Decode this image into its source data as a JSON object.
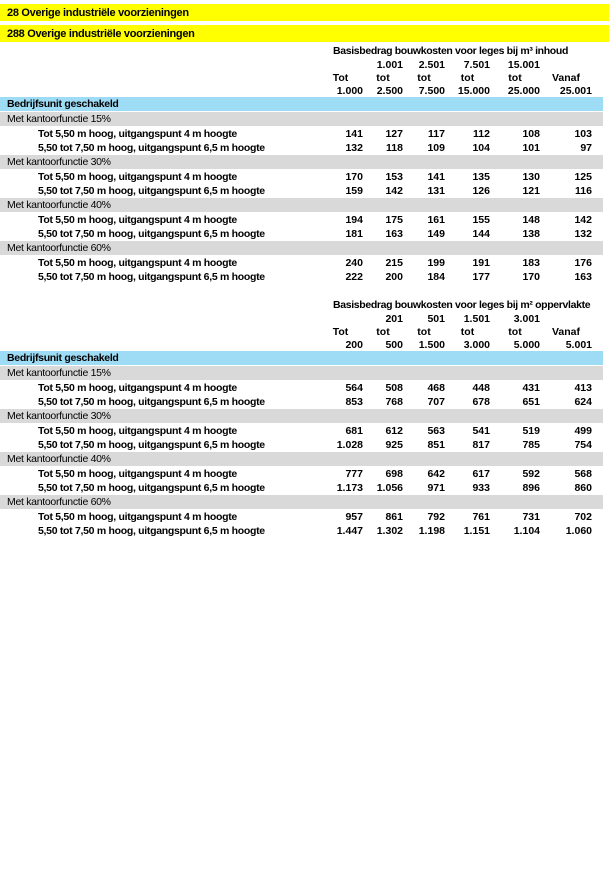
{
  "colors": {
    "highlight": "#FFFF00",
    "group_band": "#9EDCF5",
    "section_band": "#D9D9D9",
    "text": "#000000"
  },
  "category_rows": [
    {
      "text": "28 Overige industriële voorzieningen"
    },
    {
      "text": "288 Overige industriële voorzieningen"
    }
  ],
  "tables": [
    {
      "id": "m3-inhoud",
      "title": "Basisbedrag bouwkosten voor leges bij m³ inhoud",
      "range_lower": [
        "",
        "1.001",
        "2.501",
        "7.501",
        "15.001",
        ""
      ],
      "range_words": [
        "Tot",
        "tot",
        "tot",
        "tot",
        "tot",
        "Vanaf"
      ],
      "range_upper": [
        "1.000",
        "2.500",
        "7.500",
        "15.000",
        "25.000",
        "25.001"
      ],
      "group_label": "Bedrijfsunit geschakeld",
      "sections": [
        {
          "label": "Met kantoorfunctie 15%",
          "rows": [
            {
              "label": "Tot 5,50 m hoog, uitgangspunt 4 m hoogte",
              "values": [
                "141",
                "127",
                "117",
                "112",
                "108",
                "103"
              ]
            },
            {
              "label": "5,50 tot 7,50 m hoog, uitgangspunt 6,5 m hoogte",
              "values": [
                "132",
                "118",
                "109",
                "104",
                "101",
                "97"
              ]
            }
          ]
        },
        {
          "label": "Met kantoorfunctie 30%",
          "rows": [
            {
              "label": "Tot 5,50 m hoog, uitgangspunt 4 m hoogte",
              "values": [
                "170",
                "153",
                "141",
                "135",
                "130",
                "125"
              ]
            },
            {
              "label": "5,50 tot 7,50 m hoog, uitgangspunt 6,5 m hoogte",
              "values": [
                "159",
                "142",
                "131",
                "126",
                "121",
                "116"
              ]
            }
          ]
        },
        {
          "label": "Met kantoorfunctie 40%",
          "rows": [
            {
              "label": "Tot 5,50 m hoog, uitgangspunt 4 m hoogte",
              "values": [
                "194",
                "175",
                "161",
                "155",
                "148",
                "142"
              ]
            },
            {
              "label": "5,50 tot 7,50 m hoog, uitgangspunt 6,5 m hoogte",
              "values": [
                "181",
                "163",
                "149",
                "144",
                "138",
                "132"
              ]
            }
          ]
        },
        {
          "label": "Met kantoorfunctie 60%",
          "rows": [
            {
              "label": "Tot 5,50 m hoog, uitgangspunt 4 m hoogte",
              "values": [
                "240",
                "215",
                "199",
                "191",
                "183",
                "176"
              ]
            },
            {
              "label": "5,50 tot 7,50 m hoog, uitgangspunt 6,5 m hoogte",
              "values": [
                "222",
                "200",
                "184",
                "177",
                "170",
                "163"
              ]
            }
          ]
        }
      ]
    },
    {
      "id": "m2-oppervlakte",
      "title": "Basisbedrag bouwkosten voor leges bij m² oppervlakte",
      "range_lower": [
        "",
        "201",
        "501",
        "1.501",
        "3.001",
        ""
      ],
      "range_words": [
        "Tot",
        "tot",
        "tot",
        "tot",
        "tot",
        "Vanaf"
      ],
      "range_upper": [
        "200",
        "500",
        "1.500",
        "3.000",
        "5.000",
        "5.001"
      ],
      "group_label": "Bedrijfsunit geschakeld",
      "sections": [
        {
          "label": "Met kantoorfunctie 15%",
          "rows": [
            {
              "label": "Tot 5,50 m hoog, uitgangspunt 4 m hoogte",
              "values": [
                "564",
                "508",
                "468",
                "448",
                "431",
                "413"
              ]
            },
            {
              "label": "5,50 tot 7,50 m hoog, uitgangspunt 6,5 m hoogte",
              "values": [
                "853",
                "768",
                "707",
                "678",
                "651",
                "624"
              ]
            }
          ]
        },
        {
          "label": "Met kantoorfunctie 30%",
          "rows": [
            {
              "label": "Tot 5,50 m hoog, uitgangspunt 4 m hoogte",
              "values": [
                "681",
                "612",
                "563",
                "541",
                "519",
                "499"
              ]
            },
            {
              "label": "5,50 tot 7,50 m hoog, uitgangspunt 6,5 m hoogte",
              "values": [
                "1.028",
                "925",
                "851",
                "817",
                "785",
                "754"
              ]
            }
          ]
        },
        {
          "label": "Met kantoorfunctie 40%",
          "rows": [
            {
              "label": "Tot 5,50 m hoog, uitgangspunt 4 m hoogte",
              "values": [
                "777",
                "698",
                "642",
                "617",
                "592",
                "568"
              ]
            },
            {
              "label": "5,50 tot 7,50 m hoog, uitgangspunt 6,5 m hoogte",
              "values": [
                "1.173",
                "1.056",
                "971",
                "933",
                "896",
                "860"
              ]
            }
          ]
        },
        {
          "label": "Met kantoorfunctie 60%",
          "rows": [
            {
              "label": "Tot 5,50 m hoog, uitgangspunt 4 m hoogte",
              "values": [
                "957",
                "861",
                "792",
                "761",
                "731",
                "702"
              ]
            },
            {
              "label": "5,50 tot 7,50 m hoog, uitgangspunt 6,5 m hoogte",
              "values": [
                "1.447",
                "1.302",
                "1.198",
                "1.151",
                "1.104",
                "1.060"
              ]
            }
          ]
        }
      ]
    }
  ]
}
